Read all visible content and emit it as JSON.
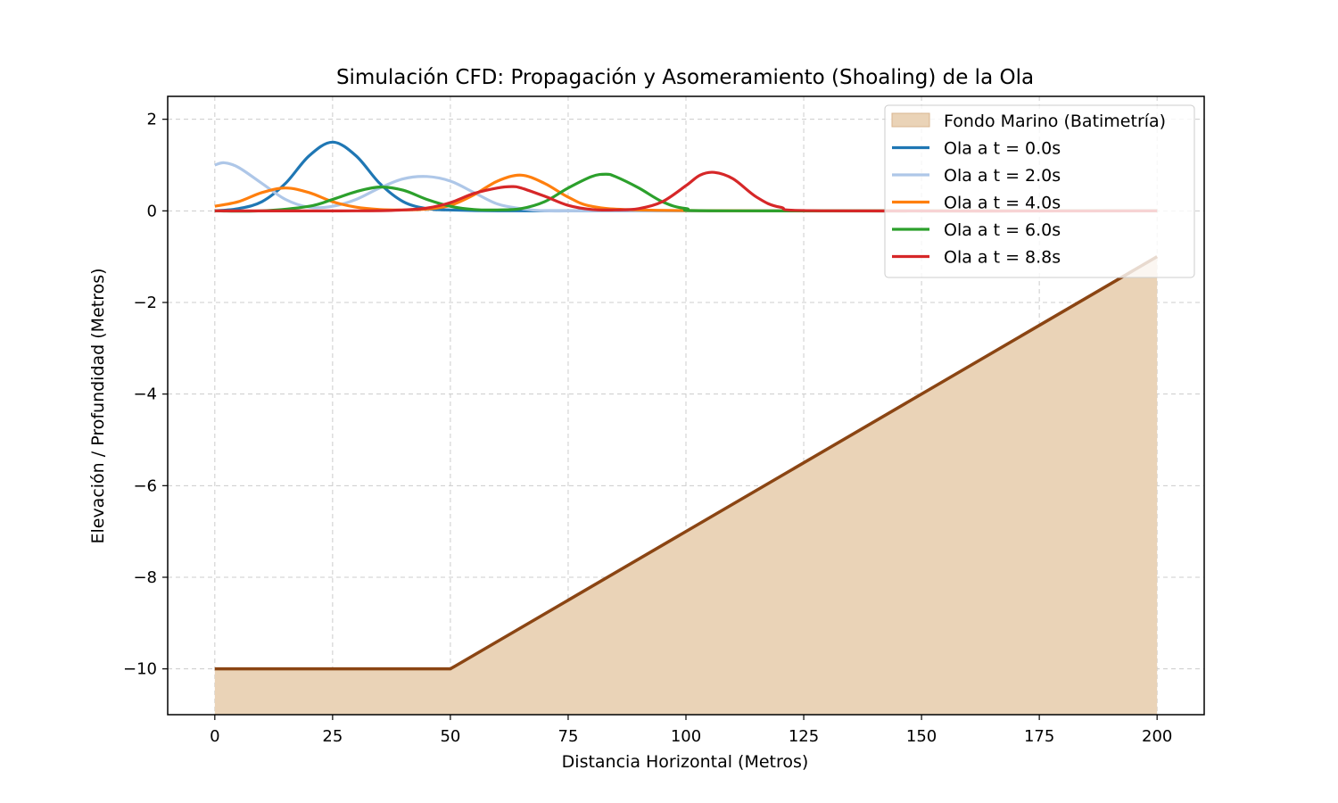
{
  "chart_data": {
    "type": "line",
    "title": "Simulación CFD: Propagación y Asomeramiento (Shoaling) de la Ola",
    "xlabel": "Distancia Horizontal (Metros)",
    "ylabel": "Elevación / Profundidad (Metros)",
    "xlim": [
      -10,
      210
    ],
    "ylim": [
      -11,
      2.5
    ],
    "xticks": [
      0,
      25,
      50,
      75,
      100,
      125,
      150,
      175,
      200
    ],
    "yticks": [
      2,
      0,
      -2,
      -4,
      -6,
      -8,
      -10
    ],
    "xtick_labels": [
      "0",
      "25",
      "50",
      "75",
      "100",
      "125",
      "150",
      "175",
      "200"
    ],
    "ytick_labels": [
      "2",
      "0",
      "−2",
      "−4",
      "−6",
      "−8",
      "−10"
    ],
    "grid": true,
    "legend_position": "upper right",
    "bathymetry": {
      "name": "Fondo Marino (Batimetría)",
      "x": [
        0,
        50,
        200
      ],
      "y": [
        -10,
        -10,
        -1
      ],
      "fill_color": "#ead3b7",
      "line_color": "#8b4513"
    },
    "series": [
      {
        "name": "Ola a t = 0.0s",
        "color": "#1f77b4",
        "x": [
          0,
          5,
          10,
          15,
          20,
          25,
          30,
          35,
          40,
          45,
          50,
          60,
          80,
          120,
          200
        ],
        "y": [
          0.0,
          0.05,
          0.2,
          0.6,
          1.2,
          1.5,
          1.2,
          0.6,
          0.2,
          0.05,
          0.02,
          0.0,
          0.0,
          0.0,
          0.0
        ]
      },
      {
        "name": "Ola a t = 2.0s",
        "color": "#aec7e8",
        "x": [
          0,
          2,
          5,
          10,
          15,
          20,
          25,
          30,
          35,
          40,
          45,
          50,
          55,
          60,
          65,
          70,
          80,
          120,
          200
        ],
        "y": [
          1.0,
          1.05,
          0.95,
          0.6,
          0.25,
          0.08,
          0.1,
          0.25,
          0.5,
          0.7,
          0.75,
          0.65,
          0.4,
          0.15,
          0.05,
          0.0,
          0.0,
          0.0,
          0.0
        ]
      },
      {
        "name": "Ola a t = 4.0s",
        "color": "#ff7f0e",
        "x": [
          0,
          5,
          10,
          15,
          20,
          25,
          30,
          35,
          40,
          45,
          50,
          55,
          60,
          65,
          70,
          75,
          80,
          90,
          120,
          200
        ],
        "y": [
          0.1,
          0.2,
          0.4,
          0.5,
          0.4,
          0.2,
          0.08,
          0.03,
          0.02,
          0.04,
          0.12,
          0.35,
          0.65,
          0.78,
          0.6,
          0.3,
          0.1,
          0.02,
          0.0,
          0.0
        ]
      },
      {
        "name": "Ola a t = 6.0s",
        "color": "#2ca02c",
        "x": [
          0,
          10,
          20,
          25,
          30,
          35,
          40,
          45,
          50,
          55,
          60,
          65,
          70,
          75,
          80,
          83,
          85,
          90,
          95,
          100,
          110,
          200
        ],
        "y": [
          0.0,
          0.0,
          0.1,
          0.25,
          0.42,
          0.52,
          0.45,
          0.25,
          0.1,
          0.03,
          0.02,
          0.05,
          0.2,
          0.5,
          0.75,
          0.8,
          0.75,
          0.5,
          0.2,
          0.05,
          0.0,
          0.0
        ]
      },
      {
        "name": "Ola a t = 8.8s",
        "color": "#d62728",
        "x": [
          0,
          30,
          40,
          45,
          50,
          55,
          60,
          63,
          65,
          70,
          75,
          80,
          85,
          90,
          95,
          100,
          103,
          106,
          110,
          115,
          120,
          130,
          200
        ],
        "y": [
          0.0,
          0.0,
          0.02,
          0.06,
          0.18,
          0.38,
          0.5,
          0.53,
          0.5,
          0.32,
          0.12,
          0.03,
          0.02,
          0.05,
          0.2,
          0.55,
          0.78,
          0.84,
          0.7,
          0.3,
          0.08,
          0.0,
          0.0
        ]
      }
    ]
  }
}
